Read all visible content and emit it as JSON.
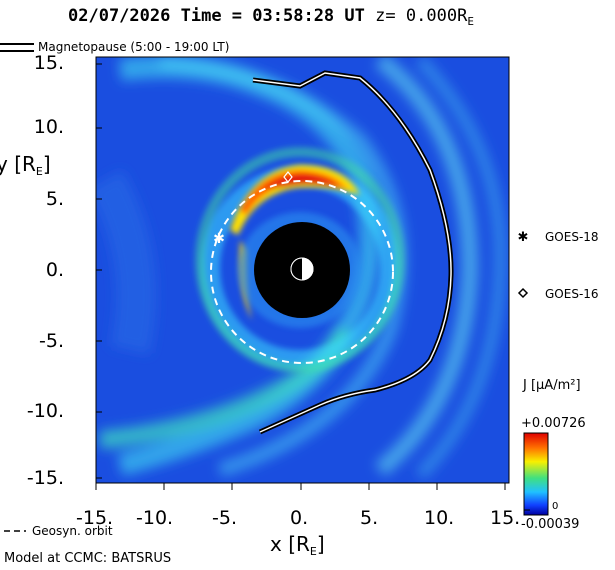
{
  "header": {
    "date": "02/07/2026",
    "time_label": "Time =",
    "time_value": "03:58:28",
    "time_unit": "UT",
    "z_label": "z=",
    "z_value": "0.000R",
    "z_sub": "E"
  },
  "legend": {
    "magnetopause_label": "Magnetopause (5:00 - 19:00 LT)",
    "geosyn_label": "Geosyn. orbit"
  },
  "axes": {
    "y_label": "y [R",
    "y_label_sub": "E",
    "y_label_end": "]",
    "x_label": "x [R",
    "x_label_sub": "E",
    "x_label_end": "]",
    "y_ticks": [
      "15.",
      "10.",
      "5.",
      "0.",
      "-5.",
      "-10.",
      "-15."
    ],
    "x_ticks": [
      "-15.",
      "-10.",
      "-5.",
      "0.",
      "5.",
      "10.",
      "15."
    ]
  },
  "satellites": {
    "goes18_label": "GOES-18",
    "goes16_label": "GOES-16"
  },
  "colorbar": {
    "quantity": "J [μA/m²]",
    "max_label": "+0.00726",
    "zero_label": "0",
    "min_label": "-0.00039"
  },
  "footer": {
    "model_label": "Model at CCMC: BATSRUS"
  },
  "chart_data": {
    "type": "heatmap",
    "xlabel": "x [RE]",
    "ylabel": "y [RE]",
    "xlim": [
      -15,
      15
    ],
    "ylim": [
      -15,
      15
    ],
    "colorbar_range": [
      -0.00039,
      0.00726
    ],
    "geosynchronous_orbit_radius": 6.6,
    "goes18_position": [
      -6.1,
      2.3
    ],
    "goes16_position": [
      -1.0,
      6.5
    ]
  },
  "colors": {
    "background": "#ffffff",
    "field_low": "#1030d8",
    "field_high": "#e81010",
    "earth": "#000000"
  }
}
